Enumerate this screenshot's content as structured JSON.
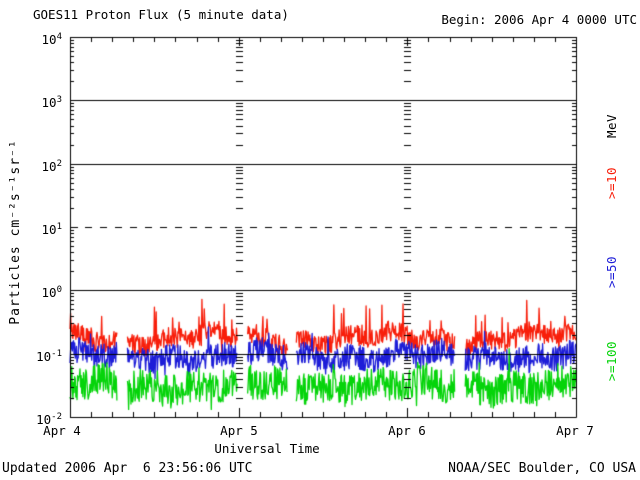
{
  "header": {
    "title": "GOES11 Proton Flux (5 minute data)",
    "begin": "Begin: 2006 Apr 4 0000 UTC"
  },
  "footer": {
    "updated": "Updated 2006 Apr  6 23:56:06 UTC",
    "source": "NOAA/SEC Boulder, CO USA"
  },
  "chart_data": {
    "type": "line",
    "title": "GOES11 Proton Flux (5 minute data)",
    "x_label": "Universal Time",
    "y_label": "Particles cm⁻²s⁻¹sr⁻¹",
    "units_label": "MeV",
    "x_ticks": [
      "Apr 4",
      "Apr 5",
      "Apr 6",
      "Apr 7"
    ],
    "x_range_days": 3,
    "points_per_day": 288,
    "y_scale": "log",
    "y_log_range": [
      -2,
      4
    ],
    "y_tick_exponents": [
      4,
      3,
      2,
      1,
      0,
      -1,
      -2
    ],
    "solid_gridlines_log": [
      3,
      2,
      0,
      -1
    ],
    "dashed_gridlines_log": [
      1
    ],
    "grid_on": true,
    "legend_position": "right",
    "day_boundary_tick_columns_hours": [
      24,
      48
    ],
    "data_gaps_hours": [
      [
        6.7,
        8.1
      ],
      [
        23.8,
        25.2
      ],
      [
        31.0,
        32.2
      ],
      [
        54.8,
        56.2
      ]
    ],
    "axis_color": "#000000",
    "series": [
      {
        "name": ">=10 MeV protons",
        "label": ">=10",
        "color": "#f81e0a",
        "typical_flux": 0.17,
        "flux_range": [
          0.08,
          0.85
        ],
        "base_log": -0.76,
        "noise_log": 0.16,
        "slow_log": 0.08,
        "spike_prob": 0.045,
        "spike_log": 0.42,
        "clamp_log": [
          -1.15,
          -0.05
        ]
      },
      {
        "name": ">=50 MeV protons",
        "label": ">=50",
        "color": "#1d1dd8",
        "typical_flux": 0.09,
        "flux_range": [
          0.03,
          0.25
        ],
        "base_log": -1.04,
        "noise_log": 0.2,
        "slow_log": 0.05,
        "spike_prob": 0.01,
        "spike_log": 0.25,
        "clamp_log": [
          -1.55,
          -0.55
        ]
      },
      {
        "name": ">=100 MeV protons",
        "label": ">=100",
        "color": "#05d40a",
        "typical_flux": 0.032,
        "flux_range": [
          0.013,
          0.11
        ],
        "base_log": -1.5,
        "noise_log": 0.27,
        "slow_log": 0.06,
        "spike_prob": 0.012,
        "spike_log": 0.3,
        "clamp_log": [
          -1.88,
          -0.92
        ]
      }
    ]
  }
}
